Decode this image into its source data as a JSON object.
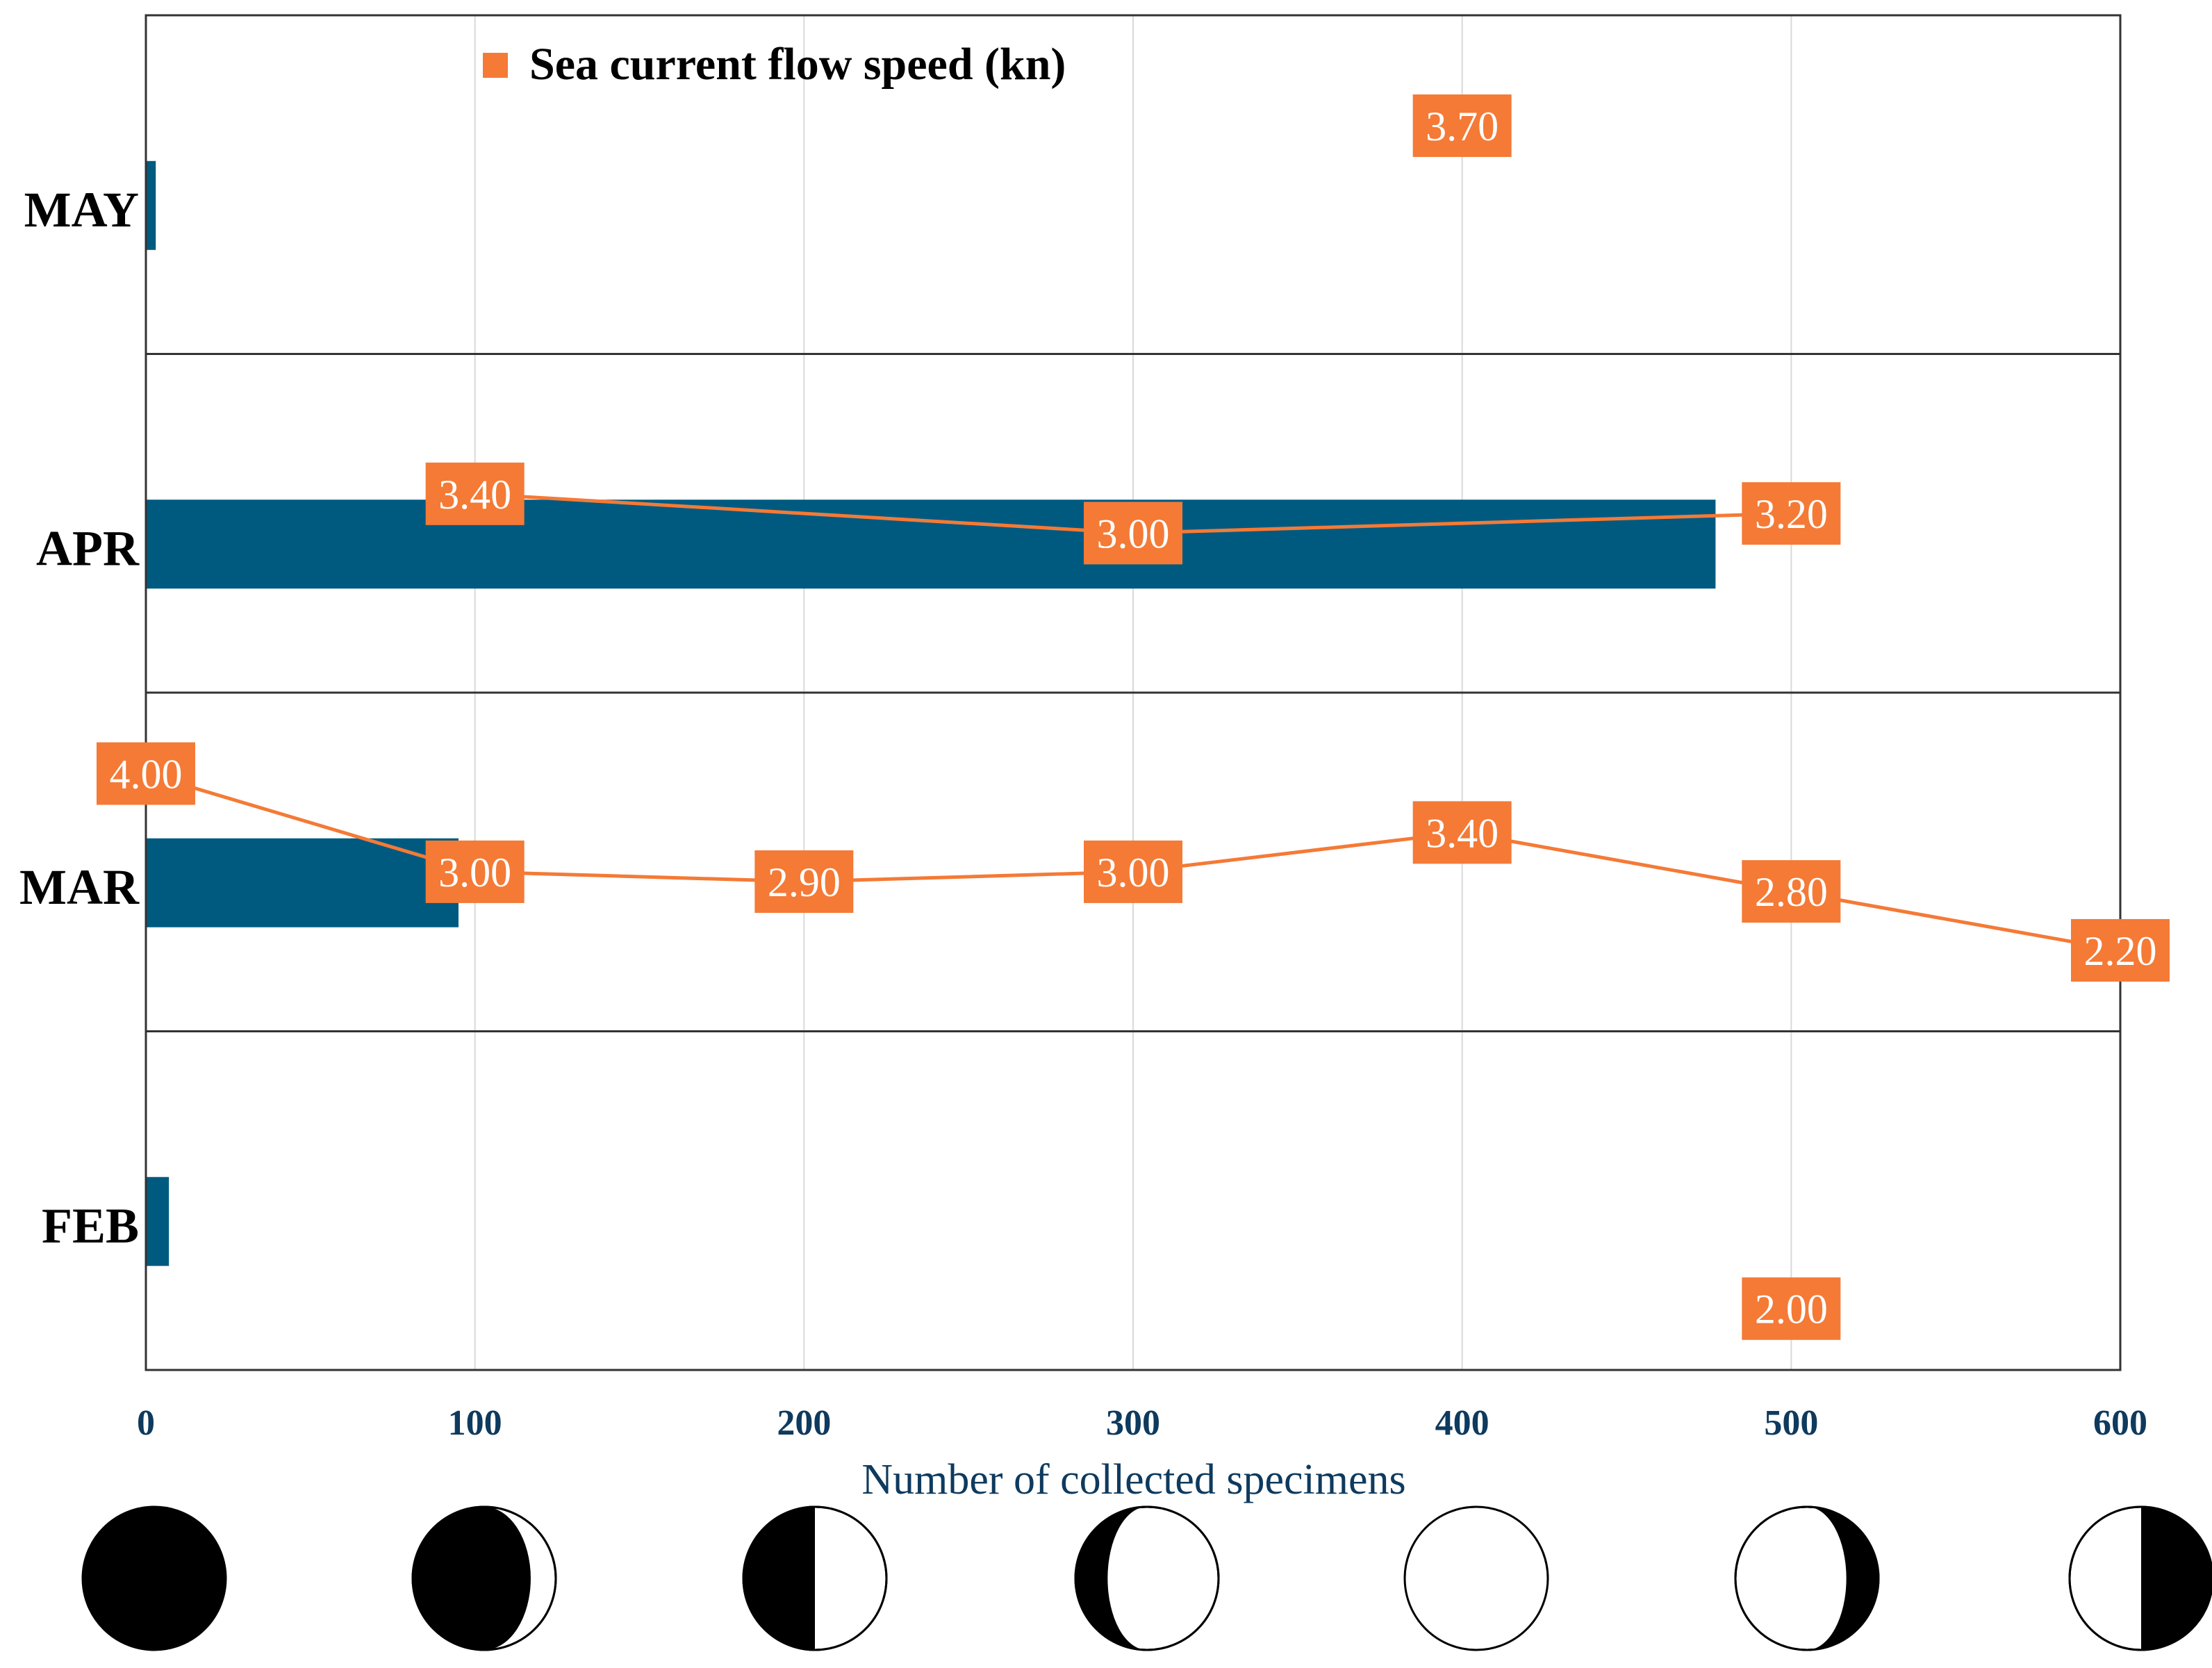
{
  "chart_data": {
    "type": "bar",
    "orientation": "horizontal",
    "categories": [
      "MAY",
      "APR",
      "MAR",
      "FEB"
    ],
    "xlabel": "Number of collected specimens",
    "xlim": [
      0,
      600
    ],
    "xticks": [
      "0",
      "100",
      "200",
      "300",
      "400",
      "500",
      "600"
    ],
    "grid": true,
    "legend": {
      "position": "top",
      "label": "Sea current flow speed (kn)"
    },
    "series": [
      {
        "name": "Number of collected specimens",
        "kind": "bar",
        "values": [
          3,
          477,
          95,
          7
        ]
      },
      {
        "name": "Sea current flow speed (kn)",
        "kind": "line",
        "panels": [
          {
            "month": "MAY",
            "points": [
              {
                "x": 400,
                "y": 3.7,
                "label": "3.70"
              }
            ]
          },
          {
            "month": "APR",
            "points": [
              {
                "x": 100,
                "y": 3.4,
                "label": "3.40"
              },
              {
                "x": 300,
                "y": 3.0,
                "label": "3.00"
              },
              {
                "x": 500,
                "y": 3.2,
                "label": "3.20"
              }
            ]
          },
          {
            "month": "MAR",
            "points": [
              {
                "x": 0,
                "y": 4.0,
                "label": "4.00"
              },
              {
                "x": 100,
                "y": 3.0,
                "label": "3.00"
              },
              {
                "x": 200,
                "y": 2.9,
                "label": "2.90"
              },
              {
                "x": 300,
                "y": 3.0,
                "label": "3.00"
              },
              {
                "x": 400,
                "y": 3.4,
                "label": "3.40"
              },
              {
                "x": 500,
                "y": 2.8,
                "label": "2.80"
              },
              {
                "x": 600,
                "y": 2.2,
                "label": "2.20"
              }
            ]
          },
          {
            "month": "FEB",
            "points": [
              {
                "x": 500,
                "y": 2.0,
                "label": "2.00"
              }
            ]
          }
        ]
      }
    ],
    "moon_phases": [
      "new moon",
      "waxing crescent",
      "first quarter",
      "waxing gibbous",
      "full moon",
      "waning gibbous",
      "last quarter"
    ]
  },
  "colors": {
    "bar": "#005a80",
    "speed": "#f47a36",
    "grid": "#d9d9d9",
    "frame": "#333333",
    "axis_text": "#0e3a5e"
  },
  "icons": [
    "moon-phase-icon"
  ]
}
